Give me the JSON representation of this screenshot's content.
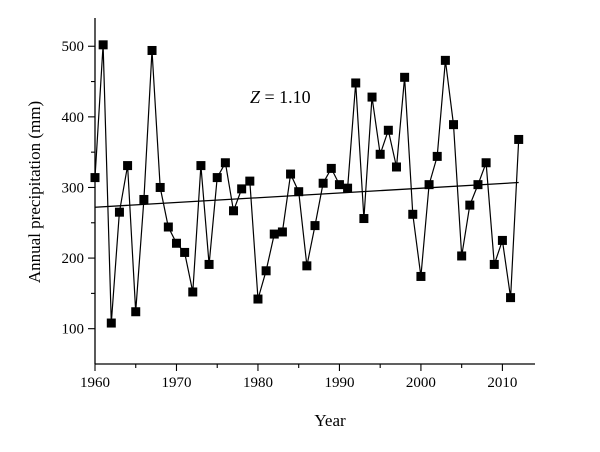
{
  "chart_data": {
    "type": "line",
    "title": "",
    "xlabel": "Year",
    "ylabel": "Annual precipitation (mm)",
    "xlim": [
      1960,
      2014
    ],
    "ylim": [
      50,
      540
    ],
    "xticks": [
      1960,
      1970,
      1980,
      1990,
      2000,
      2010
    ],
    "yticks": [
      100,
      200,
      300,
      400,
      500
    ],
    "grid": false,
    "legend": "none",
    "annotation": {
      "italic": "Z",
      "rest": " = 1.10"
    },
    "series": [
      {
        "marker": "square",
        "color": "#000000",
        "x": [
          1960,
          1961,
          1962,
          1963,
          1964,
          1965,
          1966,
          1967,
          1968,
          1969,
          1970,
          1971,
          1972,
          1973,
          1974,
          1975,
          1976,
          1977,
          1978,
          1979,
          1980,
          1981,
          1982,
          1983,
          1984,
          1985,
          1986,
          1987,
          1988,
          1989,
          1990,
          1991,
          1992,
          1993,
          1994,
          1995,
          1996,
          1997,
          1998,
          1999,
          2000,
          2001,
          2002,
          2003,
          2004,
          2005,
          2006,
          2007,
          2008,
          2009,
          2010,
          2011,
          2012
        ],
        "y": [
          314,
          502,
          108,
          265,
          331,
          124,
          283,
          494,
          300,
          244,
          221,
          208,
          152,
          331,
          191,
          314,
          335,
          267,
          298,
          309,
          142,
          182,
          234,
          237,
          319,
          294,
          189,
          246,
          306,
          327,
          304,
          299,
          448,
          256,
          428,
          347,
          381,
          329,
          456,
          262,
          174,
          304,
          344,
          480,
          389,
          203,
          275,
          304,
          335,
          191,
          225,
          144,
          368
        ]
      },
      {
        "type": "trend",
        "color": "#000000",
        "x": [
          1960,
          2012
        ],
        "y": [
          272,
          307
        ]
      }
    ]
  }
}
